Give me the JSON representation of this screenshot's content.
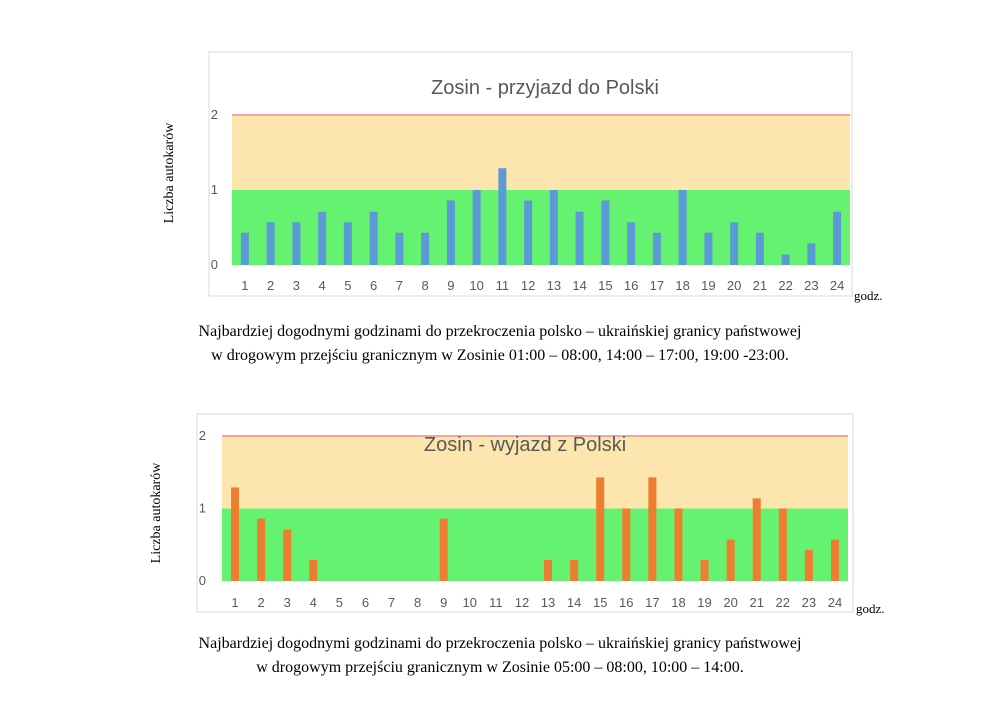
{
  "colors": {
    "green_zone": "#66f271",
    "yellow_zone": "#fde6ad",
    "limit_line": "#f0a79e",
    "arrival_bar": "#5b9bd5",
    "departure_bar": "#ed7d31",
    "axis_text": "#595959"
  },
  "chart_data": [
    {
      "type": "bar",
      "title": "Zosin - przyjazd do Polski",
      "ylabel": "Liczba autokarów",
      "xunit": "godz.",
      "ylim": [
        0,
        2
      ],
      "yticks": [
        "0",
        "1",
        "2"
      ],
      "zones": [
        {
          "from": 0,
          "to": 1,
          "color": "green"
        },
        {
          "from": 1,
          "to": 2,
          "color": "yellow"
        }
      ],
      "categories": [
        "1",
        "2",
        "3",
        "4",
        "5",
        "6",
        "7",
        "8",
        "9",
        "10",
        "11",
        "12",
        "13",
        "14",
        "15",
        "16",
        "17",
        "18",
        "19",
        "20",
        "21",
        "22",
        "23",
        "24"
      ],
      "values": [
        0.43,
        0.57,
        0.57,
        0.71,
        0.57,
        0.71,
        0.43,
        0.43,
        0.86,
        1.0,
        1.29,
        0.86,
        1.0,
        0.71,
        0.86,
        0.57,
        0.43,
        1.0,
        0.43,
        0.57,
        0.43,
        0.14,
        0.29,
        0.71
      ],
      "caption": [
        "Najbardziej dogodnymi godzinami do przekroczenia polsko – ukraińskiej granicy państwowej",
        "w drogowym przejściu granicznym w Zosinie 01:00 – 08:00, 14:00 – 17:00, 19:00 -23:00."
      ]
    },
    {
      "type": "bar",
      "title": "Zosin - wyjazd z Polski",
      "ylabel": "Liczba autokarów",
      "xunit": "godz.",
      "ylim": [
        0,
        2
      ],
      "yticks": [
        "0",
        "1",
        "2"
      ],
      "zones": [
        {
          "from": 0,
          "to": 1,
          "color": "green"
        },
        {
          "from": 1,
          "to": 2,
          "color": "yellow"
        }
      ],
      "categories": [
        "1",
        "2",
        "3",
        "4",
        "5",
        "6",
        "7",
        "8",
        "9",
        "10",
        "11",
        "12",
        "13",
        "14",
        "15",
        "16",
        "17",
        "18",
        "19",
        "20",
        "21",
        "22",
        "23",
        "24"
      ],
      "values": [
        1.29,
        0.86,
        0.71,
        0.29,
        0,
        0,
        0,
        0,
        0.86,
        0,
        0,
        0,
        0.29,
        0.29,
        1.43,
        1.0,
        1.43,
        1.0,
        0.29,
        0.57,
        1.14,
        1.0,
        0.43,
        0.57
      ],
      "caption": [
        "Najbardziej dogodnymi godzinami do przekroczenia polsko – ukraińskiej granicy państwowej",
        "w drogowym przejściu granicznym w Zosinie 05:00 – 08:00, 10:00 – 14:00."
      ]
    }
  ]
}
